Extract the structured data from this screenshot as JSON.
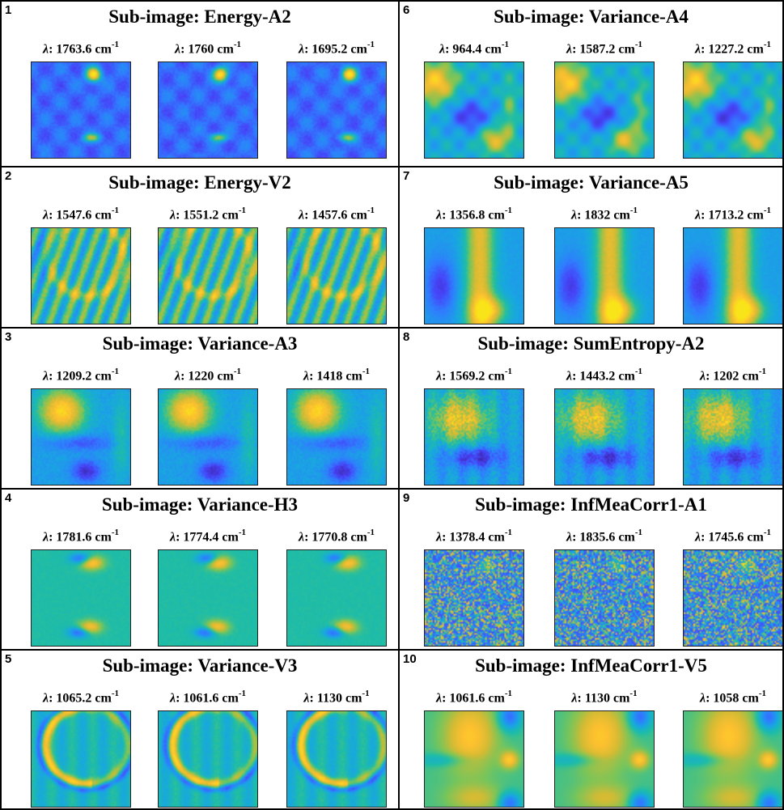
{
  "panels": [
    {
      "number": "1",
      "title": "Sub-image: Energy-A2",
      "pattern": "energy-spots",
      "images": [
        {
          "lambda_value": "1763.6",
          "unit": "cm",
          "exp": "-1"
        },
        {
          "lambda_value": "1760",
          "unit": "cm",
          "exp": "-1"
        },
        {
          "lambda_value": "1695.2",
          "unit": "cm",
          "exp": "-1"
        }
      ]
    },
    {
      "number": "2",
      "title": "Sub-image: Energy-V2",
      "pattern": "textured-ring",
      "images": [
        {
          "lambda_value": "1547.6",
          "unit": "cm",
          "exp": "-1"
        },
        {
          "lambda_value": "1551.2",
          "unit": "cm",
          "exp": "-1"
        },
        {
          "lambda_value": "1457.6",
          "unit": "cm",
          "exp": "-1"
        }
      ]
    },
    {
      "number": "3",
      "title": "Sub-image: Variance-A3",
      "pattern": "blob-upper-left",
      "images": [
        {
          "lambda_value": "1209.2",
          "unit": "cm",
          "exp": "-1"
        },
        {
          "lambda_value": "1220",
          "unit": "cm",
          "exp": "-1"
        },
        {
          "lambda_value": "1418",
          "unit": "cm",
          "exp": "-1"
        }
      ]
    },
    {
      "number": "4",
      "title": "Sub-image: Variance-H3",
      "pattern": "dipole-spots",
      "images": [
        {
          "lambda_value": "1781.6",
          "unit": "cm",
          "exp": "-1"
        },
        {
          "lambda_value": "1774.4",
          "unit": "cm",
          "exp": "-1"
        },
        {
          "lambda_value": "1770.8",
          "unit": "cm",
          "exp": "-1"
        }
      ]
    },
    {
      "number": "5",
      "title": "Sub-image: Variance-V3",
      "pattern": "ring-arc",
      "images": [
        {
          "lambda_value": "1065.2",
          "unit": "cm",
          "exp": "-1"
        },
        {
          "lambda_value": "1061.6",
          "unit": "cm",
          "exp": "-1"
        },
        {
          "lambda_value": "1130",
          "unit": "cm",
          "exp": "-1"
        }
      ]
    },
    {
      "number": "6",
      "title": "Sub-image: Variance-A4",
      "pattern": "smooth-patches",
      "images": [
        {
          "lambda_value": "964.4",
          "unit": "cm",
          "exp": "-1"
        },
        {
          "lambda_value": "1587.2",
          "unit": "cm",
          "exp": "-1"
        },
        {
          "lambda_value": "1227.2",
          "unit": "cm",
          "exp": "-1"
        }
      ]
    },
    {
      "number": "7",
      "title": "Sub-image: Variance-A5",
      "pattern": "vertical-band",
      "images": [
        {
          "lambda_value": "1356.8",
          "unit": "cm",
          "exp": "-1"
        },
        {
          "lambda_value": "1832",
          "unit": "cm",
          "exp": "-1"
        },
        {
          "lambda_value": "1713.2",
          "unit": "cm",
          "exp": "-1"
        }
      ]
    },
    {
      "number": "8",
      "title": "Sub-image: SumEntropy-A2",
      "pattern": "blob-textured",
      "images": [
        {
          "lambda_value": "1569.2",
          "unit": "cm",
          "exp": "-1"
        },
        {
          "lambda_value": "1443.2",
          "unit": "cm",
          "exp": "-1"
        },
        {
          "lambda_value": "1202",
          "unit": "cm",
          "exp": "-1"
        }
      ]
    },
    {
      "number": "9",
      "title": "Sub-image: InfMeaCorr1-A1",
      "pattern": "noise",
      "images": [
        {
          "lambda_value": "1378.4",
          "unit": "cm",
          "exp": "-1"
        },
        {
          "lambda_value": "1835.6",
          "unit": "cm",
          "exp": "-1"
        },
        {
          "lambda_value": "1745.6",
          "unit": "cm",
          "exp": "-1"
        }
      ]
    },
    {
      "number": "10",
      "title": "Sub-image: InfMeaCorr1-V5",
      "pattern": "cross-smooth",
      "images": [
        {
          "lambda_value": "1061.6",
          "unit": "cm",
          "exp": "-1"
        },
        {
          "lambda_value": "1130",
          "unit": "cm",
          "exp": "-1"
        },
        {
          "lambda_value": "1058",
          "unit": "cm",
          "exp": "-1"
        }
      ]
    }
  ],
  "lambda_symbol": "λ",
  "colormap": [
    "#3e26a8",
    "#4743f8",
    "#2f7efe",
    "#18a7e1",
    "#1ebda7",
    "#7bc559",
    "#d3bb34",
    "#fdc030",
    "#f9e419"
  ]
}
